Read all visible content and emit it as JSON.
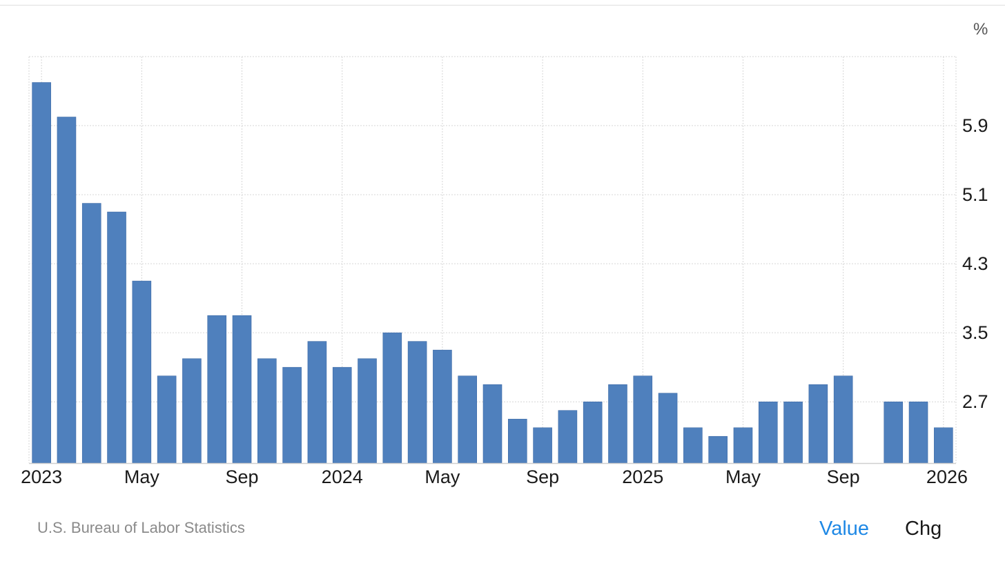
{
  "chart_data": {
    "type": "bar",
    "unit": "%",
    "categories": [
      "Jan 2023",
      "Feb 2023",
      "Mar 2023",
      "Apr 2023",
      "May 2023",
      "Jun 2023",
      "Jul 2023",
      "Aug 2023",
      "Sep 2023",
      "Oct 2023",
      "Nov 2023",
      "Dec 2023",
      "Jan 2024",
      "Feb 2024",
      "Mar 2024",
      "Apr 2024",
      "May 2024",
      "Jun 2024",
      "Jul 2024",
      "Aug 2024",
      "Sep 2024",
      "Oct 2024",
      "Nov 2024",
      "Dec 2024",
      "Jan 2025",
      "Feb 2025",
      "Mar 2025",
      "Apr 2025",
      "May 2025",
      "Jun 2025",
      "Jul 2025",
      "Aug 2025",
      "Sep 2025",
      "Oct 2025",
      "Nov 2025",
      "Dec 2025",
      "Jan 2026"
    ],
    "values": [
      6.4,
      6.0,
      5.0,
      4.9,
      4.1,
      3.0,
      3.2,
      3.7,
      3.7,
      3.2,
      3.1,
      3.4,
      3.1,
      3.2,
      3.5,
      3.4,
      3.3,
      3.0,
      2.9,
      2.5,
      2.4,
      2.6,
      2.7,
      2.9,
      3.0,
      2.8,
      2.4,
      2.3,
      2.4,
      2.7,
      2.7,
      2.9,
      3.0,
      null,
      2.7,
      2.7,
      2.4
    ],
    "x_tick_labels": [
      {
        "label": "2023",
        "index": 0
      },
      {
        "label": "May",
        "index": 4
      },
      {
        "label": "Sep",
        "index": 8
      },
      {
        "label": "2024",
        "index": 12
      },
      {
        "label": "May",
        "index": 16
      },
      {
        "label": "Sep",
        "index": 20
      },
      {
        "label": "2025",
        "index": 24
      },
      {
        "label": "May",
        "index": 28
      },
      {
        "label": "Sep",
        "index": 32
      },
      {
        "label": "2026",
        "index": 36
      }
    ],
    "y_ticks": [
      2.7,
      3.5,
      4.3,
      5.1,
      5.9
    ],
    "y_tick_labels": [
      "2.7",
      "3.5",
      "4.3",
      "5.1",
      "5.9"
    ],
    "ylim": [
      1.99,
      6.7
    ],
    "y_axis_position": "right",
    "grid": true,
    "bar_color": "#4f80bd"
  },
  "footer": {
    "source": "U.S. Bureau of Labor Statistics",
    "toggle_value": "Value",
    "toggle_chg": "Chg",
    "active_color": "#1e88e5"
  }
}
